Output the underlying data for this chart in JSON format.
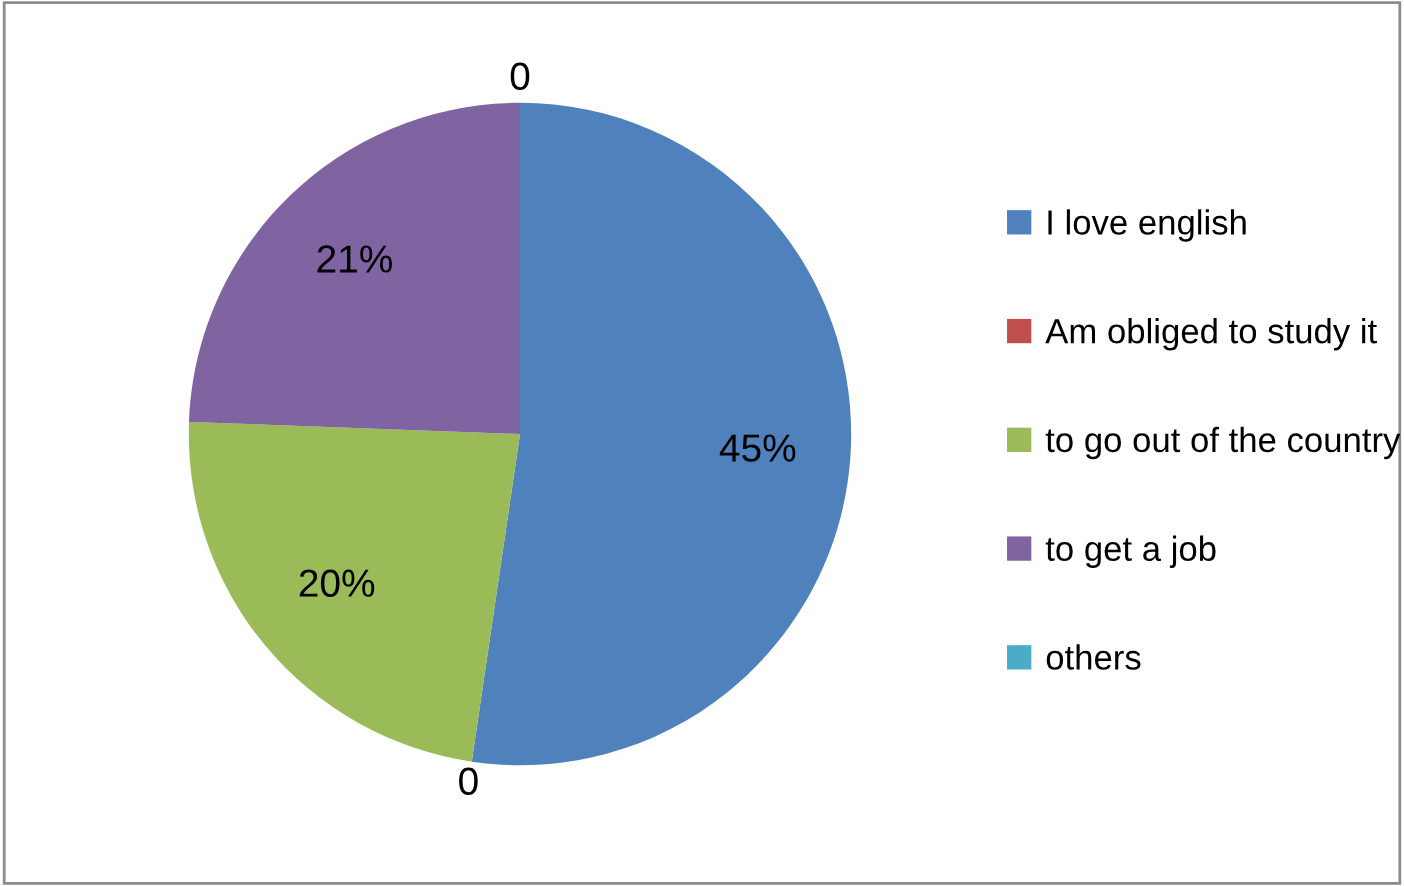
{
  "chart_data": {
    "type": "pie",
    "categories": [
      "I love english",
      "Am obliged to study it",
      "to go out of the country",
      "to get a job",
      "others"
    ],
    "values": [
      45,
      0,
      20,
      21,
      0
    ],
    "colors": [
      "#4f81bd",
      "#c0504d",
      "#9bbb59",
      "#8064a2",
      "#4bacc6"
    ],
    "value_labels": [
      "45%",
      "0",
      "20%",
      "21%",
      "0"
    ],
    "legend": "right"
  }
}
